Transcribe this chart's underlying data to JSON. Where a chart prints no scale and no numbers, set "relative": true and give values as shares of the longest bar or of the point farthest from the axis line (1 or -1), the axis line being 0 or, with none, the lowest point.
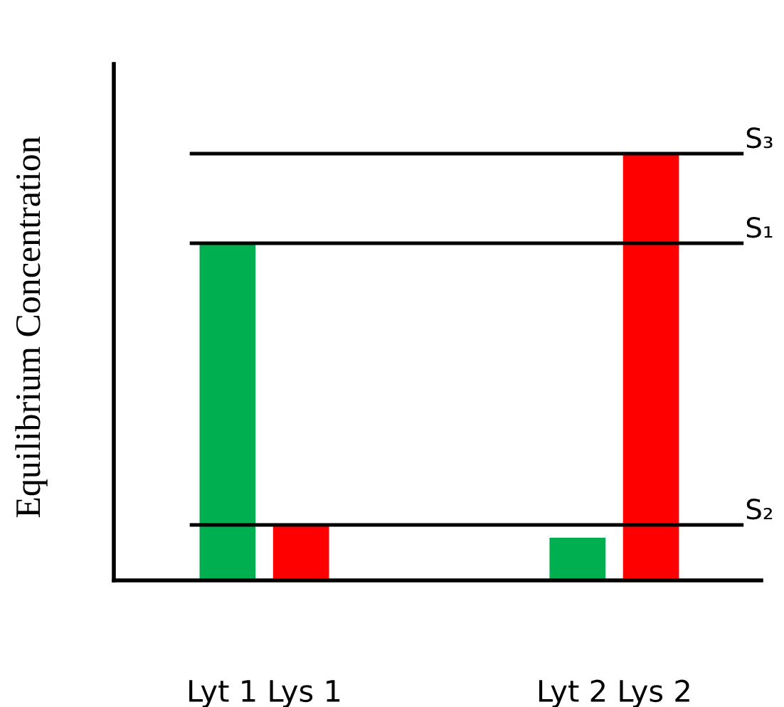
{
  "chart_data": {
    "type": "bar",
    "ylabel": "Equilibrium Concentration",
    "relative": true,
    "categories": [
      "Lyt 1 Lys 1",
      "Lyt 2 Lys 2"
    ],
    "series": [
      {
        "color": "#00b050",
        "values": [
          0.79,
          0.1
        ]
      },
      {
        "color": "#ff0000",
        "values": [
          0.13,
          1.0
        ]
      }
    ],
    "ref_lines": [
      {
        "axis": "y",
        "value": 1.0,
        "label": "S₃",
        "color": "#000000"
      },
      {
        "axis": "y",
        "value": 0.79,
        "label": "S₁",
        "color": "#000000"
      },
      {
        "axis": "y",
        "value": 0.13,
        "label": "S₂",
        "color": "#000000"
      }
    ],
    "grid": false,
    "legend": false
  }
}
